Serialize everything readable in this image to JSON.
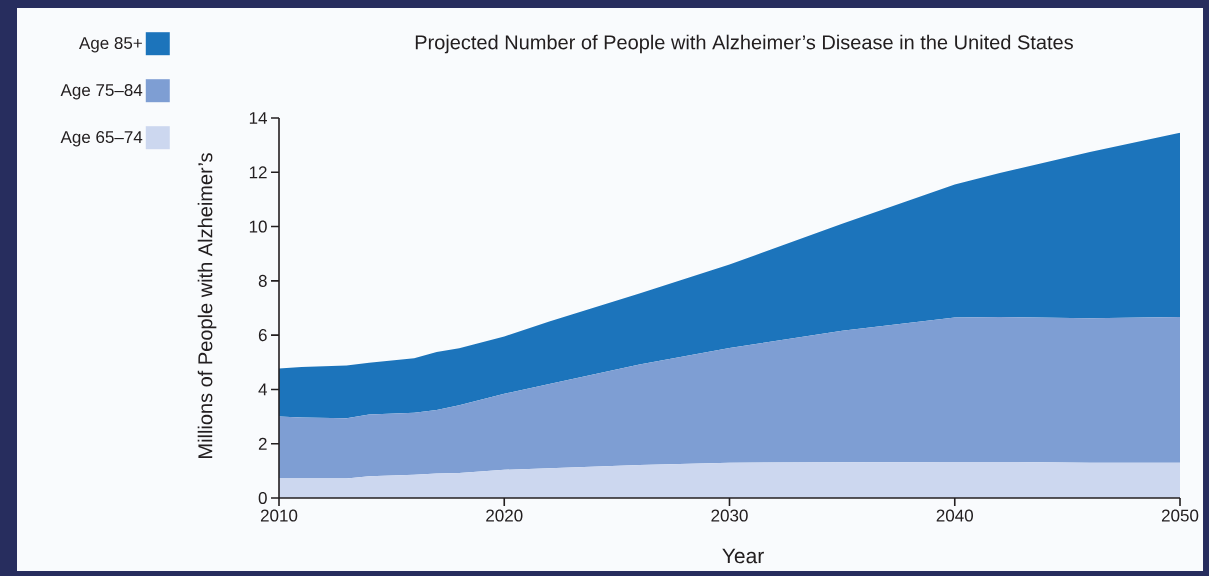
{
  "chart_data": {
    "type": "area",
    "stacked": true,
    "title": "Projected Number of People with Alzheimer’s Disease in the United States",
    "xlabel": "Year",
    "ylabel": "Millions of People with Alzheimer’s",
    "legend": "top left",
    "x": [
      2010,
      2011,
      2013,
      2014,
      2016,
      2017,
      2018,
      2020,
      2022,
      2026,
      2030,
      2035,
      2040,
      2042,
      2046,
      2050
    ],
    "series": [
      {
        "name": "Age 65–74",
        "color": "#ccd7ef",
        "values": [
          0.72,
          0.72,
          0.72,
          0.8,
          0.86,
          0.9,
          0.92,
          1.04,
          1.1,
          1.22,
          1.3,
          1.32,
          1.33,
          1.33,
          1.3,
          1.3
        ]
      },
      {
        "name": "Age 75–84",
        "color": "#7e9ed3",
        "values": [
          2.28,
          2.25,
          2.22,
          2.28,
          2.28,
          2.34,
          2.5,
          2.8,
          3.1,
          3.7,
          4.23,
          4.84,
          5.32,
          5.34,
          5.32,
          5.37
        ]
      },
      {
        "name": "Age 85+",
        "color": "#1c74bb",
        "values": [
          1.77,
          1.86,
          1.94,
          1.9,
          2.01,
          2.14,
          2.1,
          2.11,
          2.3,
          2.61,
          3.07,
          3.94,
          4.9,
          5.3,
          6.13,
          6.79
        ]
      }
    ],
    "xlim": [
      2010,
      2050
    ],
    "ylim": [
      0,
      14
    ],
    "xticks": [
      2010,
      2020,
      2030,
      2040,
      2050
    ],
    "yticks": [
      0,
      2,
      4,
      6,
      8,
      10,
      12,
      14
    ]
  }
}
